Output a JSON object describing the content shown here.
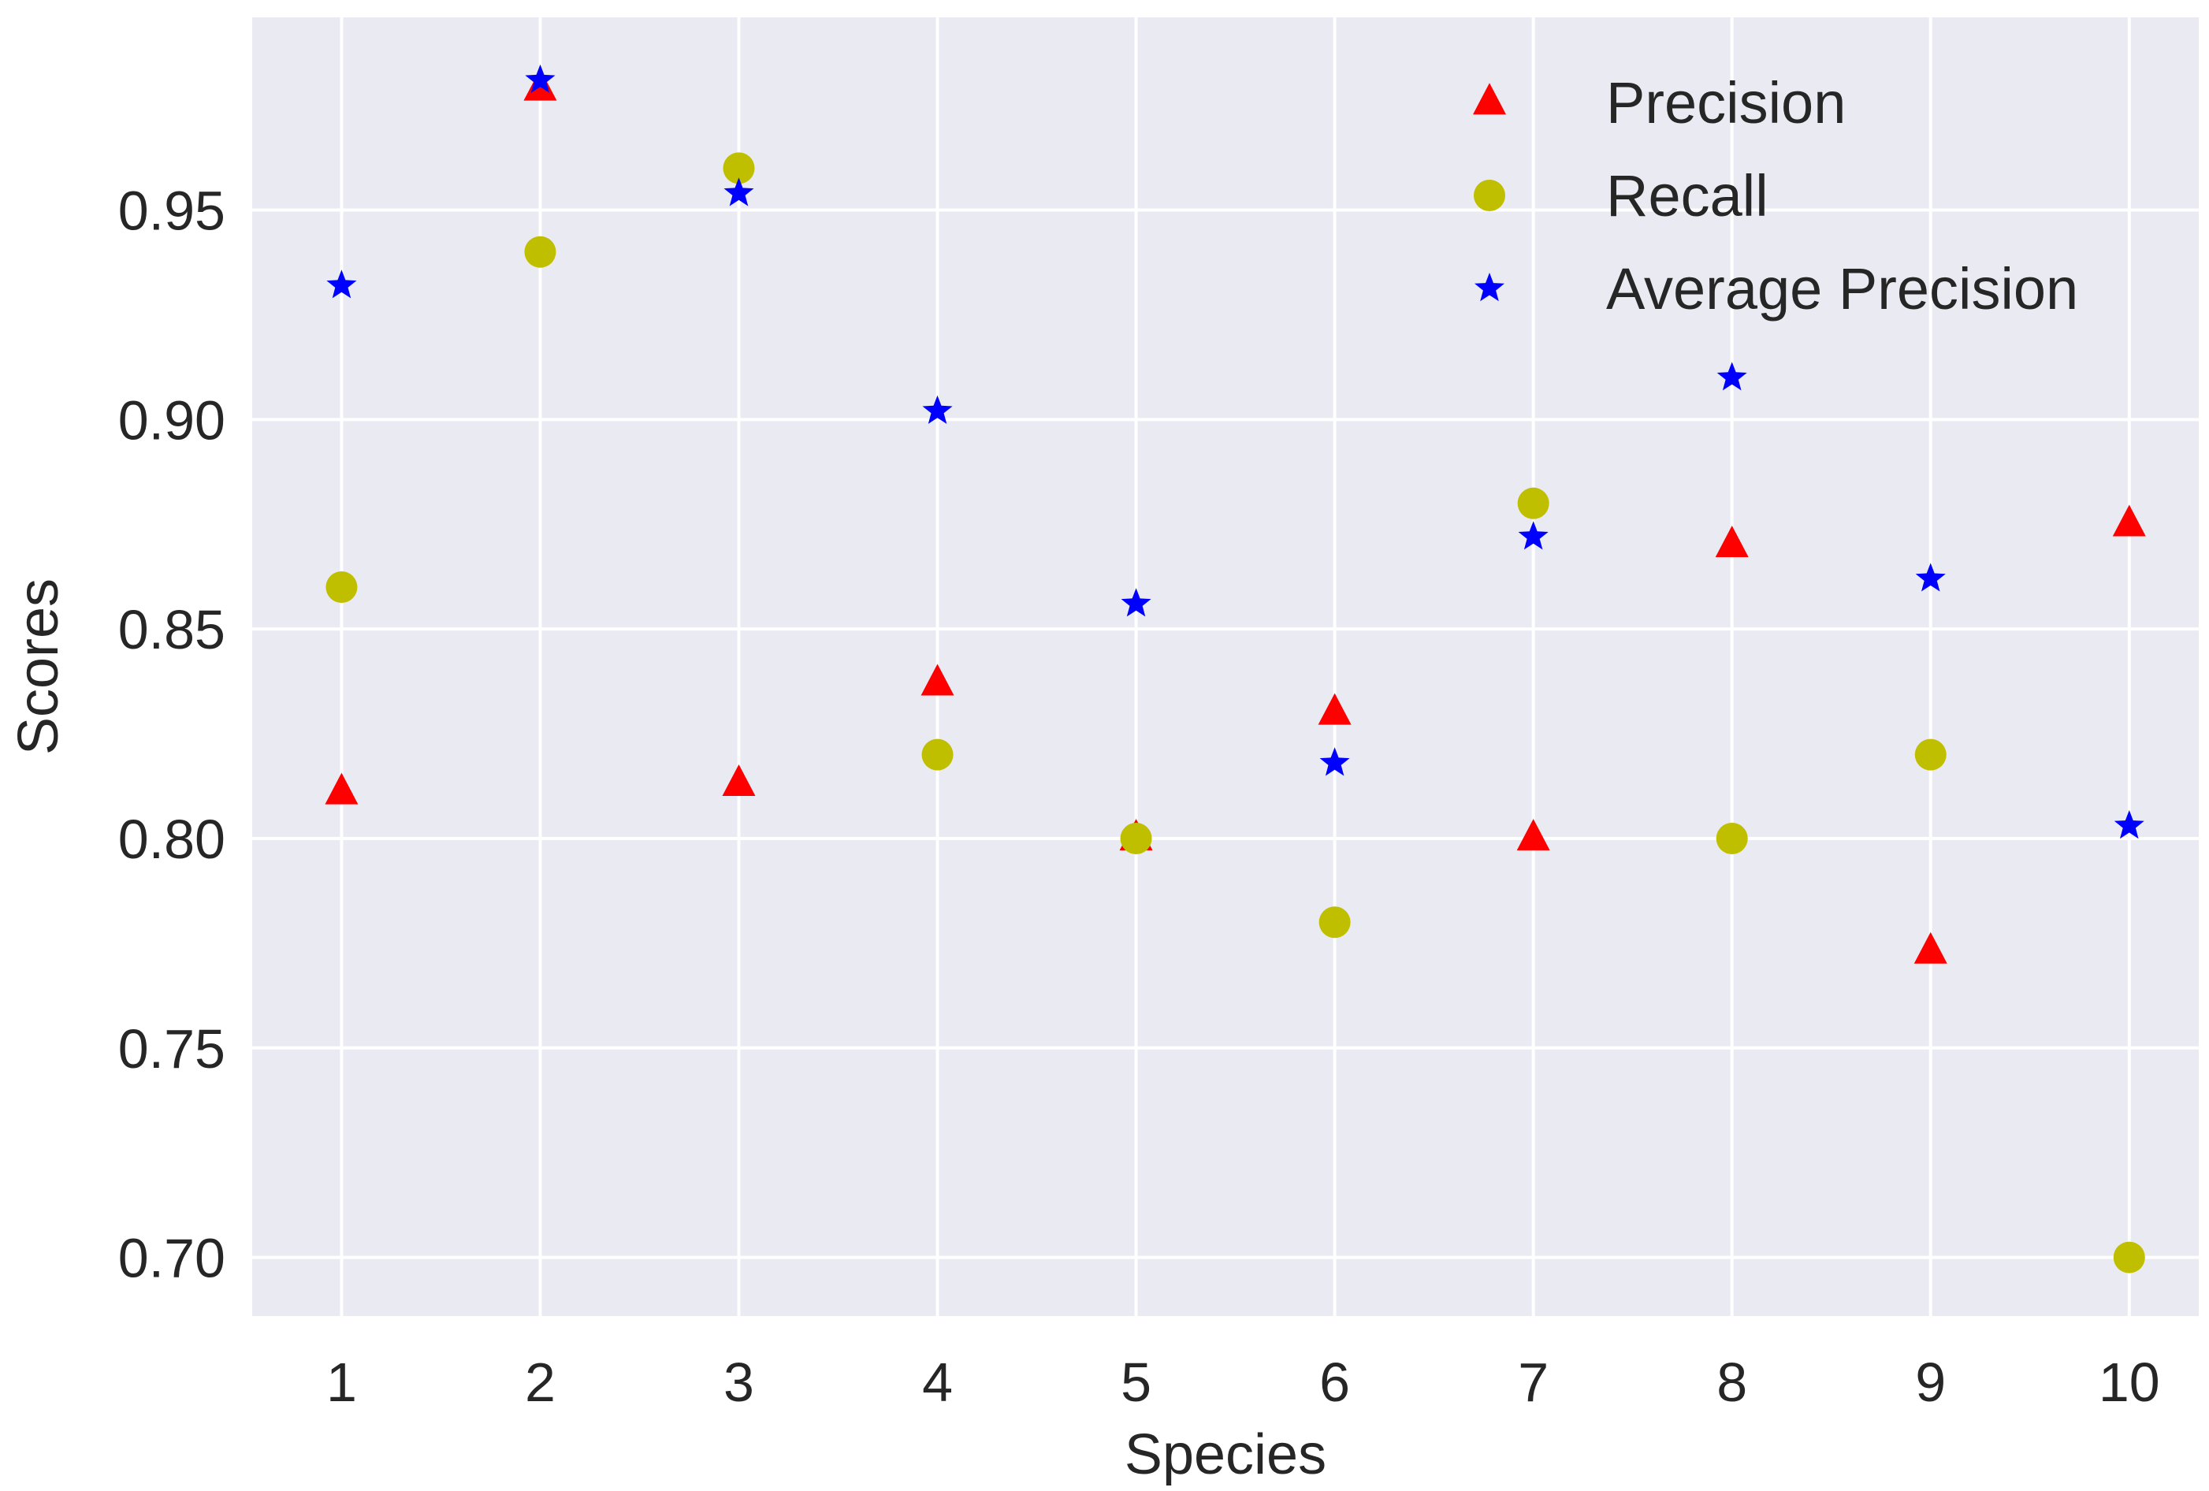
{
  "chart_data": {
    "type": "scatter",
    "xlabel": "Species",
    "ylabel": "Scores",
    "x": [
      1,
      2,
      3,
      4,
      5,
      6,
      7,
      8,
      9,
      10
    ],
    "xlim": [
      0.55,
      10.35
    ],
    "ylim": [
      0.686,
      0.996
    ],
    "xticks": [
      1,
      2,
      3,
      4,
      5,
      6,
      7,
      8,
      9,
      10
    ],
    "xtick_labels": [
      "1",
      "2",
      "3",
      "4",
      "5",
      "6",
      "7",
      "8",
      "9",
      "10"
    ],
    "yticks": [
      0.7,
      0.75,
      0.8,
      0.85,
      0.9,
      0.95
    ],
    "ytick_labels": [
      "0.70",
      "0.75",
      "0.80",
      "0.85",
      "0.90",
      "0.95"
    ],
    "grid": true,
    "legend_position": "top-right",
    "series": [
      {
        "name": "Precision",
        "marker": "triangle",
        "color": "#ff0000",
        "values": [
          0.811,
          0.979,
          0.813,
          0.837,
          0.8,
          0.83,
          0.8,
          0.87,
          0.773,
          0.875
        ]
      },
      {
        "name": "Recall",
        "marker": "circle",
        "color": "#bfbf00",
        "values": [
          0.86,
          0.94,
          0.96,
          0.82,
          0.8,
          0.78,
          0.88,
          0.8,
          0.82,
          0.7
        ]
      },
      {
        "name": "Average Precision",
        "marker": "star",
        "color": "#0000ff",
        "values": [
          0.932,
          0.981,
          0.954,
          0.902,
          0.856,
          0.818,
          0.872,
          0.91,
          0.862,
          0.803
        ]
      }
    ]
  },
  "colors": {
    "plot_background": "#eaeaf2",
    "grid": "#ffffff",
    "text": "#262626"
  }
}
